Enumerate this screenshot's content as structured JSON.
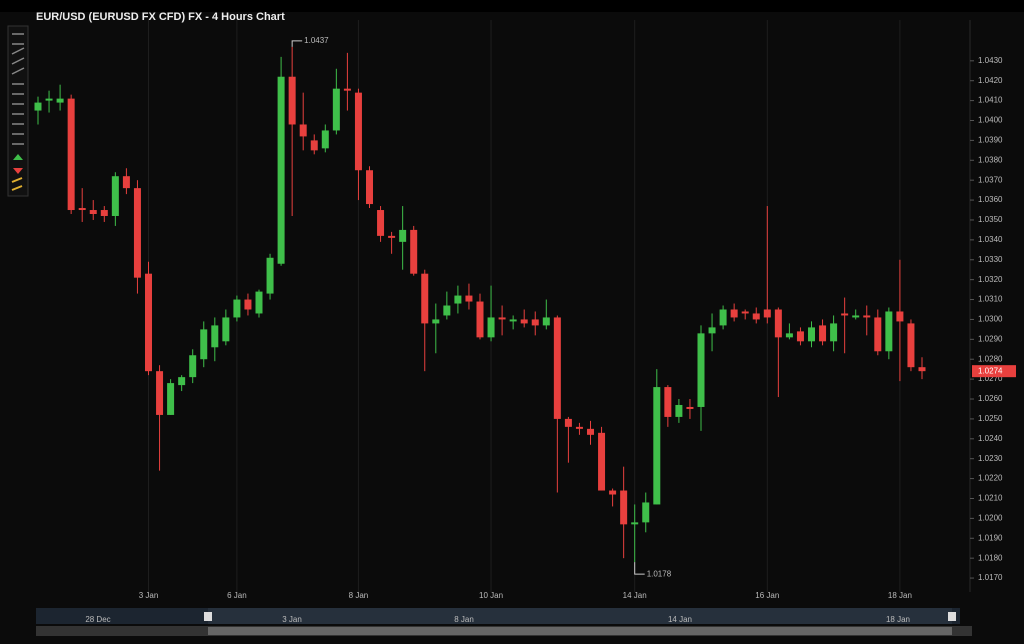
{
  "chart_data": {
    "type": "candlestick",
    "title": "EUR/USD (EURUSD FX CFD) FX - 4 Hours Chart",
    "categories": [
      null,
      null,
      null,
      null,
      null,
      null,
      null,
      null,
      null,
      null,
      "3 Jan",
      null,
      null,
      null,
      null,
      null,
      null,
      null,
      "6 Jan",
      null,
      null,
      null,
      null,
      null,
      null,
      null,
      null,
      null,
      null,
      "8 Jan",
      null,
      null,
      null,
      null,
      null,
      null,
      null,
      null,
      null,
      null,
      null,
      "10 Jan",
      null,
      null,
      null,
      null,
      null,
      null,
      null,
      null,
      null,
      null,
      null,
      null,
      "14 Jan",
      null,
      null,
      null,
      null,
      null,
      null,
      null,
      null,
      null,
      null,
      null,
      "16 Jan",
      null,
      null,
      null,
      null,
      null,
      null,
      null,
      null,
      null,
      null,
      null,
      "18 Jan",
      null,
      null
    ],
    "open": [
      1.0405,
      1.041,
      1.0409,
      1.0411,
      1.0356,
      1.0355,
      1.0355,
      1.0352,
      1.0372,
      1.0366,
      1.0323,
      1.0274,
      1.0252,
      1.0267,
      1.0271,
      1.028,
      1.0286,
      1.0289,
      1.0301,
      1.031,
      1.0303,
      1.0313,
      1.0328,
      1.0422,
      1.0398,
      1.039,
      1.0386,
      1.0395,
      1.0416,
      1.0414,
      1.0375,
      1.0355,
      1.0342,
      1.0339,
      1.0345,
      1.0323,
      1.0298,
      1.0302,
      1.0308,
      1.0312,
      1.0309,
      1.0291,
      1.0301,
      1.0299,
      1.03,
      1.03,
      1.0297,
      1.0301,
      1.025,
      1.0246,
      1.0245,
      1.0243,
      1.0214,
      1.0214,
      1.0197,
      1.0198,
      1.0207,
      1.0266,
      1.0251,
      1.0256,
      1.0256,
      1.0293,
      1.0297,
      1.0305,
      1.0304,
      1.0303,
      1.0305,
      1.0305,
      1.0291,
      1.0294,
      1.0289,
      1.0297,
      1.0289,
      1.0303,
      1.0301,
      1.0302,
      1.0301,
      1.0284,
      1.0304,
      1.0298,
      1.0276
    ],
    "high": [
      1.0412,
      1.0415,
      1.0418,
      1.0413,
      1.0366,
      1.036,
      1.0357,
      1.0374,
      1.0376,
      1.037,
      1.0329,
      1.0277,
      1.027,
      1.0272,
      1.0285,
      1.0299,
      1.0301,
      1.0305,
      1.0312,
      1.0313,
      1.0315,
      1.0333,
      1.0432,
      1.0437,
      1.0414,
      1.0393,
      1.0398,
      1.0426,
      1.0434,
      1.0416,
      1.0377,
      1.0357,
      1.0344,
      1.0357,
      1.0347,
      1.0325,
      1.0308,
      1.0314,
      1.0317,
      1.0318,
      1.0313,
      1.0317,
      1.0307,
      1.0302,
      1.0305,
      1.0304,
      1.031,
      1.0302,
      1.0251,
      1.0248,
      1.0249,
      1.0246,
      1.0215,
      1.0226,
      1.0207,
      1.0213,
      1.0275,
      1.0267,
      1.026,
      1.026,
      1.0297,
      1.0303,
      1.0307,
      1.0308,
      1.0305,
      1.0306,
      1.0357,
      1.0306,
      1.0298,
      1.0296,
      1.0299,
      1.03,
      1.0302,
      1.0311,
      1.0305,
      1.0307,
      1.0305,
      1.0306,
      1.033,
      1.03,
      1.0281
    ],
    "low": [
      1.0398,
      1.0404,
      1.0405,
      1.0353,
      1.0349,
      1.035,
      1.0349,
      1.0347,
      1.0363,
      1.0313,
      1.0272,
      1.0224,
      1.0252,
      1.0264,
      1.0268,
      1.0276,
      1.0279,
      1.0287,
      1.0299,
      1.0302,
      1.0301,
      1.031,
      1.0327,
      1.0352,
      1.0385,
      1.0383,
      1.0384,
      1.0393,
      1.0405,
      1.036,
      1.0356,
      1.0339,
      1.0333,
      1.0325,
      1.0322,
      1.0274,
      1.0283,
      1.03,
      1.0303,
      1.0305,
      1.029,
      1.0289,
      1.0292,
      1.0295,
      1.0296,
      1.0292,
      1.0295,
      1.0213,
      1.0228,
      1.0242,
      1.0237,
      1.0214,
      1.0206,
      1.018,
      1.0178,
      1.0193,
      1.0207,
      1.0246,
      1.0248,
      1.025,
      1.0244,
      1.0284,
      1.0295,
      1.0299,
      1.03,
      1.0298,
      1.0298,
      1.0261,
      1.029,
      1.0287,
      1.0286,
      1.0287,
      1.0284,
      1.0283,
      1.03,
      1.0292,
      1.0282,
      1.028,
      1.0269,
      1.0274,
      1.027
    ],
    "close": [
      1.0409,
      1.0411,
      1.0411,
      1.0355,
      1.0355,
      1.0353,
      1.0352,
      1.0372,
      1.0366,
      1.0321,
      1.0274,
      1.0252,
      1.0268,
      1.0271,
      1.0282,
      1.0295,
      1.0297,
      1.0301,
      1.031,
      1.0305,
      1.0314,
      1.0331,
      1.0422,
      1.0398,
      1.0392,
      1.0385,
      1.0395,
      1.0416,
      1.0415,
      1.0375,
      1.0358,
      1.0342,
      1.0341,
      1.0345,
      1.0323,
      1.0298,
      1.03,
      1.0307,
      1.0312,
      1.0309,
      1.0291,
      1.0301,
      1.03,
      1.03,
      1.0298,
      1.0297,
      1.0301,
      1.025,
      1.0246,
      1.0245,
      1.0242,
      1.0214,
      1.0212,
      1.0197,
      1.0198,
      1.0208,
      1.0266,
      1.0251,
      1.0257,
      1.0255,
      1.0293,
      1.0296,
      1.0305,
      1.0301,
      1.0303,
      1.03,
      1.0301,
      1.0291,
      1.0293,
      1.0289,
      1.0296,
      1.0289,
      1.0298,
      1.0302,
      1.0302,
      1.0301,
      1.0284,
      1.0304,
      1.0299,
      1.0276,
      1.0274
    ],
    "up_color": "#3fbf4a",
    "down_color": "#e8403e",
    "ylim": [
      1.0164,
      1.04475
    ],
    "yticks": [
      {
        "value": 1.017,
        "label": "1.0170"
      },
      {
        "value": 1.018,
        "label": "1.0180"
      },
      {
        "value": 1.019,
        "label": "1.0190"
      },
      {
        "value": 1.02,
        "label": "1.0200"
      },
      {
        "value": 1.021,
        "label": "1.0210"
      },
      {
        "value": 1.022,
        "label": "1.0220"
      },
      {
        "value": 1.023,
        "label": "1.0230"
      },
      {
        "value": 1.024,
        "label": "1.0240"
      },
      {
        "value": 1.025,
        "label": "1.0250"
      },
      {
        "value": 1.026,
        "label": "1.0260"
      },
      {
        "value": 1.027,
        "label": "1.0270"
      },
      {
        "value": 1.028,
        "label": "1.0280"
      },
      {
        "value": 1.029,
        "label": "1.0290"
      },
      {
        "value": 1.03,
        "label": "1.0300"
      },
      {
        "value": 1.031,
        "label": "1.0310"
      },
      {
        "value": 1.032,
        "label": "1.0320"
      },
      {
        "value": 1.033,
        "label": "1.0330"
      },
      {
        "value": 1.034,
        "label": "1.0340"
      },
      {
        "value": 1.035,
        "label": "1.0350"
      },
      {
        "value": 1.036,
        "label": "1.0360"
      },
      {
        "value": 1.037,
        "label": "1.0370"
      },
      {
        "value": 1.038,
        "label": "1.0380"
      },
      {
        "value": 1.039,
        "label": "1.0390"
      },
      {
        "value": 1.04,
        "label": "1.0400"
      },
      {
        "value": 1.041,
        "label": "1.0410"
      },
      {
        "value": 1.042,
        "label": "1.0420"
      },
      {
        "value": 1.043,
        "label": "1.0430"
      }
    ],
    "high_annotation": 1.0437,
    "low_annotation": 1.0178,
    "last_price": 1.0274,
    "navigator_labels": [
      "28 Dec",
      "3 Jan",
      "8 Jan",
      "14 Jan",
      "18 Jan"
    ]
  }
}
